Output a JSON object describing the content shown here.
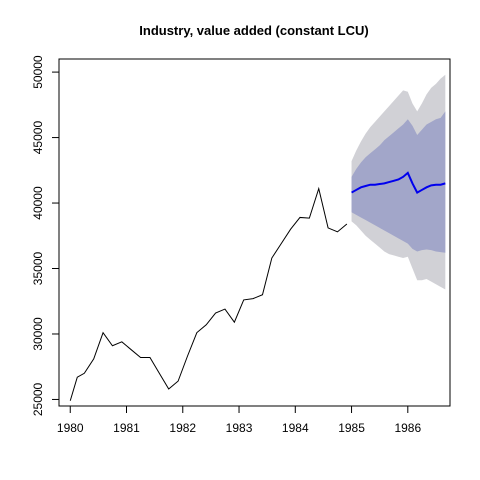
{
  "chart_data": {
    "type": "line",
    "title": "Industry, value added (constant LCU)",
    "xlabel": "",
    "ylabel": "",
    "xlim": [
      1979.8,
      1986.75
    ],
    "ylim": [
      24500,
      51000
    ],
    "x_ticks": [
      1980,
      1981,
      1982,
      1983,
      1984,
      1985,
      1986
    ],
    "x_tick_labels": [
      "1980",
      "1981",
      "1982",
      "1983",
      "1984",
      "1985",
      "1986"
    ],
    "y_ticks": [
      25000,
      30000,
      35000,
      40000,
      45000,
      50000
    ],
    "y_tick_labels": [
      "25000",
      "30000",
      "35000",
      "40000",
      "45000",
      "50000"
    ],
    "history": {
      "color": "#000000",
      "x": [
        1980.0,
        1980.125,
        1980.25,
        1980.417,
        1980.583,
        1980.75,
        1980.917,
        1981.083,
        1981.25,
        1981.417,
        1981.583,
        1981.75,
        1981.917,
        1982.083,
        1982.25,
        1982.417,
        1982.583,
        1982.75,
        1982.917,
        1983.083,
        1983.25,
        1983.417,
        1983.583,
        1983.75,
        1983.917,
        1984.083,
        1984.25,
        1984.417,
        1984.583,
        1984.75,
        1984.917
      ],
      "y": [
        24900,
        26700,
        27000,
        28100,
        30100,
        29100,
        29400,
        28800,
        28200,
        28200,
        27000,
        25800,
        26400,
        28300,
        30100,
        30700,
        31600,
        31900,
        30900,
        32600,
        32700,
        33000,
        35800,
        36900,
        38000,
        38900,
        38850,
        41100,
        38100,
        37800,
        38400
      ]
    },
    "forecast": {
      "line_color": "#0000ee",
      "band80_color": "#a2a6c9",
      "band95_color": "#d1d1d6",
      "x": [
        1985.0,
        1985.083,
        1985.167,
        1985.25,
        1985.333,
        1985.417,
        1985.5,
        1985.583,
        1985.667,
        1985.75,
        1985.833,
        1985.917,
        1986.0,
        1986.083,
        1986.167,
        1986.25,
        1986.333,
        1986.417,
        1986.5,
        1986.583,
        1986.667
      ],
      "mean": [
        40800,
        41000,
        41200,
        41300,
        41400,
        41400,
        41450,
        41500,
        41600,
        41700,
        41800,
        42000,
        42300,
        41500,
        40800,
        41000,
        41200,
        41350,
        41400,
        41400,
        41500
      ],
      "lo80": [
        39300,
        39100,
        38900,
        38700,
        38500,
        38300,
        38100,
        37900,
        37700,
        37500,
        37300,
        37100,
        36900,
        36500,
        36300,
        36400,
        36450,
        36400,
        36300,
        36250,
        36200
      ],
      "hi80": [
        42000,
        42600,
        43100,
        43500,
        43800,
        44100,
        44400,
        44800,
        45100,
        45400,
        45700,
        46000,
        46400,
        45900,
        45200,
        45600,
        46000,
        46200,
        46400,
        46500,
        47000
      ],
      "lo95": [
        38600,
        38300,
        37900,
        37500,
        37200,
        36900,
        36600,
        36300,
        36100,
        36000,
        35900,
        35800,
        35900,
        35000,
        34100,
        34100,
        34200,
        34000,
        33800,
        33600,
        33400
      ],
      "hi95": [
        43200,
        44000,
        44700,
        45300,
        45800,
        46200,
        46600,
        47000,
        47400,
        47800,
        48200,
        48600,
        48500,
        47600,
        47000,
        47600,
        48300,
        48800,
        49100,
        49500,
        49800
      ]
    }
  }
}
